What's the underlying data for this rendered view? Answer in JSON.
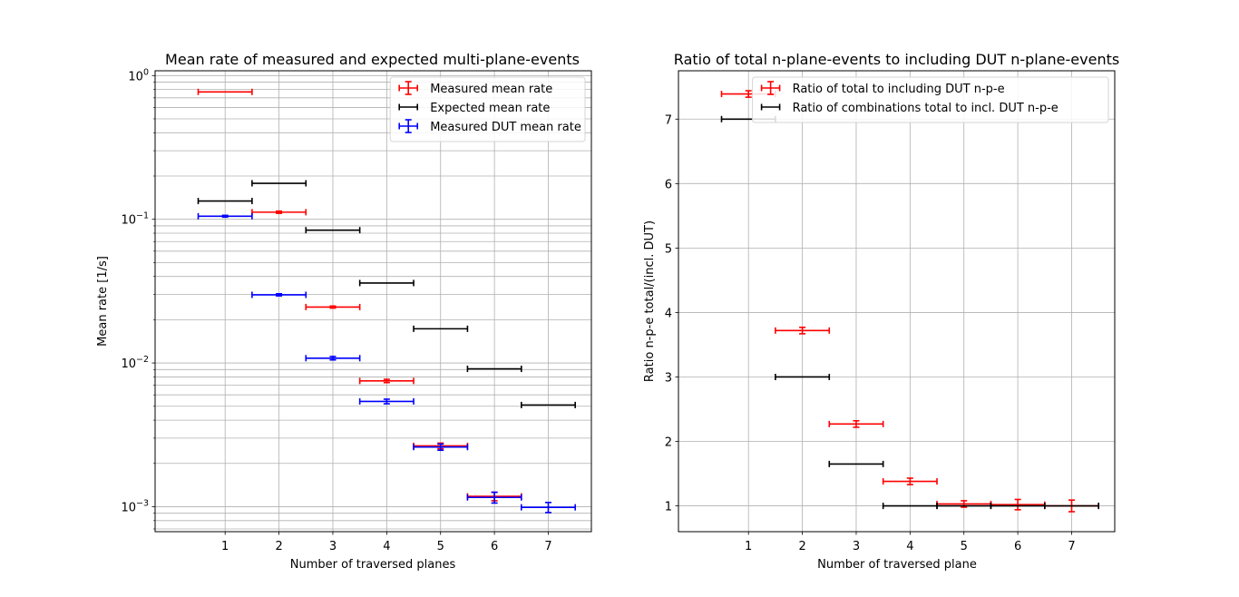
{
  "chart_data": [
    {
      "type": "scatter",
      "title": "Mean rate of measured and expected multi-plane-events",
      "xlabel": "Number of traversed planes",
      "ylabel": "Mean rate [1/s]",
      "yscale": "log",
      "xlim": [
        -0.3,
        7.8
      ],
      "ylim": [
        0.00067,
        1.08
      ],
      "xticks": [
        1,
        2,
        3,
        4,
        5,
        6,
        7
      ],
      "yticks": [
        {
          "value": 0.001,
          "label": "10",
          "exp": "−3"
        },
        {
          "value": 0.01,
          "label": "10",
          "exp": "−2"
        },
        {
          "value": 0.1,
          "label": "10",
          "exp": "−1"
        },
        {
          "value": 1,
          "label": "10",
          "exp": "0"
        }
      ],
      "grid": true,
      "legend_position": "top-right",
      "series": [
        {
          "name": "Measured mean rate",
          "color": "#ff0000",
          "x_err": 0.5,
          "x": [
            1,
            2,
            3,
            4,
            5,
            6
          ],
          "y": [
            0.77,
            0.112,
            0.0245,
            0.0075,
            0.00265,
            0.00118
          ],
          "y_err": [
            0.0,
            0.002,
            0.0004,
            0.0002,
            0.00012,
            8e-05
          ]
        },
        {
          "name": "Expected mean rate",
          "color": "#000000",
          "x_err": 0.5,
          "x": [
            1,
            2,
            3,
            4,
            5,
            6,
            7
          ],
          "y": [
            0.134,
            0.178,
            0.084,
            0.036,
            0.0173,
            0.0091,
            0.0051
          ],
          "y_err": [
            0,
            0,
            0,
            0,
            0,
            0,
            0
          ]
        },
        {
          "name": "Measured DUT mean rate",
          "color": "#0000ff",
          "x_err": 0.5,
          "x": [
            1,
            2,
            3,
            4,
            5,
            6,
            7
          ],
          "y": [
            0.105,
            0.0298,
            0.0108,
            0.0054,
            0.0026,
            0.00116,
            0.00099
          ],
          "y_err": [
            0.0015,
            0.0005,
            0.0003,
            0.0002,
            0.00013,
            0.0001,
            8e-05
          ]
        }
      ]
    },
    {
      "type": "scatter",
      "title": "Ratio of total n-plane-events to including DUT n-plane-events",
      "xlabel": "Number of traversed plane",
      "ylabel": "Ratio n-p-e total/(incl. DUT)",
      "xlim": [
        -0.3,
        7.8
      ],
      "ylim": [
        0.6,
        7.75
      ],
      "xticks": [
        1,
        2,
        3,
        4,
        5,
        6,
        7
      ],
      "yticks": [
        1,
        2,
        3,
        4,
        5,
        6,
        7
      ],
      "grid": true,
      "legend_position": "top-right",
      "series": [
        {
          "name": "Ratio of total to including DUT n-p-e",
          "color": "#ff0000",
          "x_err": 0.5,
          "x": [
            1,
            2,
            3,
            4,
            5,
            6,
            7
          ],
          "y": [
            7.39,
            3.72,
            2.27,
            1.38,
            1.03,
            1.02,
            1.0
          ],
          "y_err": [
            0.05,
            0.05,
            0.05,
            0.05,
            0.05,
            0.08,
            0.09
          ]
        },
        {
          "name": "Ratio of combinations total to incl. DUT n-p-e",
          "color": "#000000",
          "x_err": 0.5,
          "x": [
            1,
            2,
            3,
            4,
            5,
            6,
            7
          ],
          "y": [
            7,
            3,
            1.65,
            1,
            1,
            1,
            1
          ],
          "y_err": [
            0,
            0,
            0,
            0,
            0,
            0,
            0
          ]
        }
      ]
    }
  ]
}
